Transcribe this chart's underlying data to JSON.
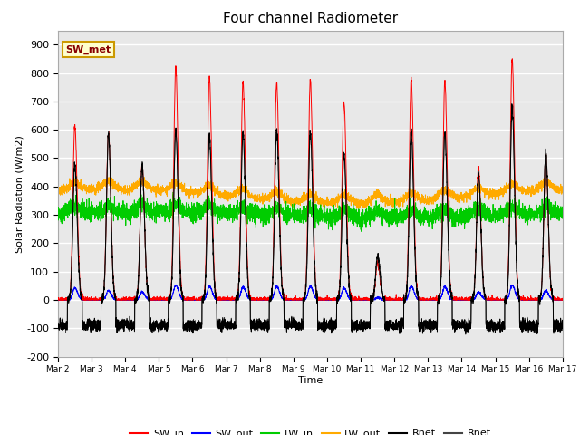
{
  "title": "Four channel Radiometer",
  "xlabel": "Time",
  "ylabel": "Solar Radiation (W/m2)",
  "ylim": [
    -200,
    950
  ],
  "yticks": [
    -200,
    -100,
    0,
    100,
    200,
    300,
    400,
    500,
    600,
    700,
    800,
    900
  ],
  "x_tick_labels": [
    "Mar 2",
    "Mar 3",
    "Mar 4",
    "Mar 5",
    "Mar 6",
    "Mar 7",
    "Mar 8",
    "Mar 9",
    "Mar 10",
    "Mar 11",
    "Mar 12",
    "Mar 13",
    "Mar 14",
    "Mar 15",
    "Mar 16",
    "Mar 17"
  ],
  "num_days": 15,
  "annotation_text": "SW_met",
  "annotation_bg": "#ffffcc",
  "annotation_border": "#cc9900",
  "bg_color": "#e8e8e8",
  "colors": {
    "SW_in": "#ff0000",
    "SW_out": "#0000ff",
    "LW_in": "#00cc00",
    "LW_out": "#ffaa00",
    "Rnet": "#000000",
    "Rnet2": "#444444"
  },
  "legend_labels": [
    "SW_in",
    "SW_out",
    "LW_in",
    "LW_out",
    "Rnet",
    "Rnet"
  ],
  "legend_colors": [
    "#ff0000",
    "#0000ff",
    "#00cc00",
    "#ffaa00",
    "#000000",
    "#444444"
  ],
  "peaks_SW": [
    615,
    590,
    480,
    820,
    785,
    770,
    765,
    775,
    700,
    130,
    780,
    765,
    465,
    850,
    510
  ],
  "peaks_SWout": [
    42,
    33,
    28,
    52,
    48,
    46,
    48,
    48,
    42,
    8,
    48,
    46,
    28,
    52,
    33
  ],
  "peaks_Rnet": [
    480,
    580,
    475,
    595,
    580,
    590,
    600,
    595,
    510,
    150,
    595,
    590,
    445,
    675,
    520
  ]
}
